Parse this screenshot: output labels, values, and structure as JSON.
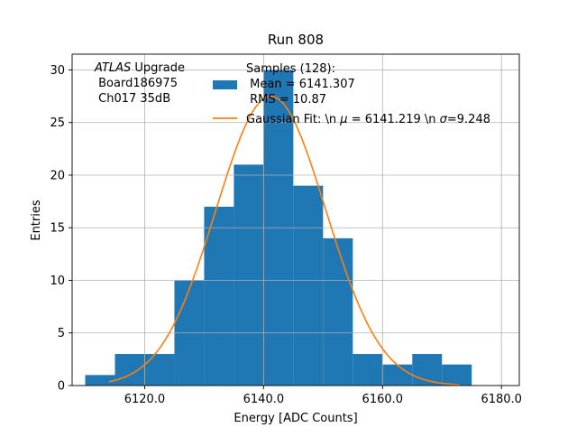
{
  "chart_data": {
    "type": "bar",
    "title": "Run 808",
    "xlabel": "Energy [ADC Counts]",
    "ylabel": "Entries",
    "xlim": [
      6107.8,
      6183.0
    ],
    "ylim": [
      0,
      31.5
    ],
    "x_ticks": [
      6120.0,
      6140.0,
      6160.0,
      6180.0
    ],
    "x_tick_labels": [
      "6120.0",
      "6140.0",
      "6160.0",
      "6180.0"
    ],
    "y_ticks": [
      0,
      5,
      10,
      15,
      20,
      25,
      30
    ],
    "y_tick_labels": [
      "0",
      "5",
      "10",
      "15",
      "20",
      "25",
      "30"
    ],
    "grid": true,
    "annotation": {
      "italic": "ATLAS",
      "line1_rest": " Upgrade",
      "line2": " Board186975",
      "line3": " Ch017 35dB"
    },
    "histogram": {
      "bin_edges": [
        6110,
        6115,
        6120,
        6125,
        6130,
        6135,
        6140,
        6145,
        6150,
        6155,
        6160,
        6165,
        6170,
        6175
      ],
      "counts": [
        1,
        3,
        3,
        10,
        17,
        21,
        30,
        19,
        14,
        3,
        2,
        3,
        2
      ],
      "color": "#1f77b4"
    },
    "fit": {
      "mu": 6141.219,
      "sigma": 9.248,
      "amplitude": 27.5,
      "x_range": [
        6114,
        6173
      ],
      "color": "#ff7f0e"
    },
    "legend": {
      "placement": "top-right",
      "hist_lines": [
        "Samples (128):",
        " Mean = 6141.307",
        " RMS = 10.87"
      ],
      "fit_label": "Gaussian Fit: \\n $\\mu$ = 6141.219 \\n $\\sigma$=9.248",
      "fit_prefix": "Gaussian Fit: \\n ",
      "fit_mu_symbol": "μ",
      "fit_mid": " = 6141.219 \\n ",
      "fit_sigma_symbol": "σ",
      "fit_suffix": "=9.248"
    }
  }
}
